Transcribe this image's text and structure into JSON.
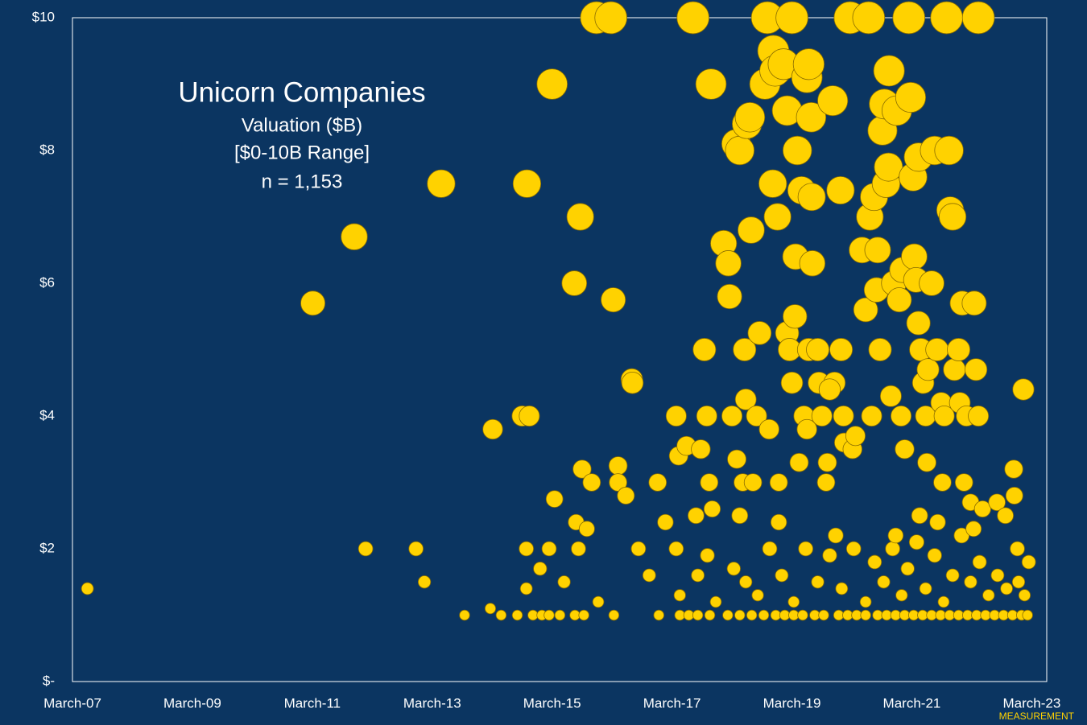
{
  "chart_data": {
    "type": "scatter",
    "title": "Unicorn Companies",
    "subtitle": "Valuation ($B)",
    "range_note": "[$0-10B Range]",
    "count_note": "n = 1,153",
    "footer": "MEASUREMENT",
    "color": "#ffd200",
    "xlim": [
      2007.17,
      2023.42
    ],
    "xticks": [
      {
        "value": 2007.17,
        "label": "March-07"
      },
      {
        "value": 2009.17,
        "label": "March-09"
      },
      {
        "value": 2011.17,
        "label": "March-11"
      },
      {
        "value": 2013.17,
        "label": "March-13"
      },
      {
        "value": 2015.17,
        "label": "March-15"
      },
      {
        "value": 2017.17,
        "label": "March-17"
      },
      {
        "value": 2019.17,
        "label": "March-19"
      },
      {
        "value": 2021.17,
        "label": "March-21"
      },
      {
        "value": 2023.17,
        "label": "March-23"
      }
    ],
    "ylim": [
      0,
      10
    ],
    "yticks": [
      {
        "value": 0,
        "label": "$-"
      },
      {
        "value": 2,
        "label": "$2"
      },
      {
        "value": 4,
        "label": "$4"
      },
      {
        "value": 6,
        "label": "$6"
      },
      {
        "value": 8,
        "label": "$8"
      },
      {
        "value": 10,
        "label": "$10"
      }
    ],
    "x": [
      2007.42,
      2011.18,
      2011.87,
      2012.06,
      2012.9,
      2013.04,
      2013.32,
      2013.71,
      2014.14,
      2014.18,
      2014.32,
      2014.59,
      2014.67,
      2014.74,
      2014.74,
      2014.75,
      2014.79,
      2014.97,
      2015.12,
      2015.17,
      2015.21,
      2015.37,
      2015.54,
      2015.57,
      2015.61,
      2015.64,
      2015.67,
      2015.75,
      2015.83,
      2015.94,
      2015.91,
      2016.15,
      2016.19,
      2016.27,
      2016.27,
      2016.4,
      2016.5,
      2016.51,
      2016.61,
      2016.79,
      2016.93,
      2017.06,
      2017.24,
      2017.24,
      2017.28,
      2017.41,
      2017.52,
      2017.57,
      2017.65,
      2017.71,
      2017.75,
      2017.79,
      2017.82,
      2017.84,
      2017.76,
      2018.03,
      2018.11,
      2018.13,
      2018.17,
      2018.24,
      2018.3,
      2018.25,
      2018.3,
      2018.35,
      2018.38,
      2018.4,
      2018.42,
      2018.47,
      2018.49,
      2018.52,
      2018.58,
      2018.63,
      2018.72,
      2018.76,
      2018.79,
      2018.85,
      2018.86,
      2018.89,
      2018.93,
      2018.95,
      2019.03,
      2019.09,
      2019.09,
      2019.13,
      2019.17,
      2019.17,
      2019.22,
      2019.23,
      2019.26,
      2019.29,
      2019.33,
      2019.37,
      2019.42,
      2019.42,
      2019.45,
      2019.45,
      2019.49,
      2019.5,
      2019.51,
      2019.6,
      2019.62,
      2019.67,
      2019.74,
      2019.76,
      2019.88,
      2019.8,
      2019.85,
      2019.98,
      2019.99,
      2020.03,
      2020.04,
      2020.14,
      2020.18,
      2020.23,
      2020.34,
      2020.4,
      2020.45,
      2020.47,
      2020.5,
      2020.54,
      2020.58,
      2020.6,
      2020.64,
      2020.68,
      2020.71,
      2020.74,
      2020.78,
      2020.79,
      2020.82,
      2020.87,
      2020.92,
      2020.96,
      2020.99,
      2021.01,
      2021.05,
      2021.12,
      2021.15,
      2021.19,
      2021.21,
      2021.24,
      2021.28,
      2021.32,
      2021.28,
      2021.36,
      2021.4,
      2021.42,
      2021.44,
      2021.5,
      2021.55,
      2021.59,
      2021.66,
      2021.68,
      2021.71,
      2021.75,
      2021.79,
      2021.81,
      2021.85,
      2021.88,
      2021.95,
      2021.97,
      2022.01,
      2022.04,
      2022.08,
      2022.15,
      2022.21,
      2022.24,
      2022.28,
      2022.28,
      2022.35,
      2022.59,
      2022.73,
      2022.87,
      2022.88,
      2022.93,
      2023.03,
      2023.12,
      2014.85,
      2015.0,
      2015.12,
      2015.3,
      2015.55,
      2015.7,
      2016.2,
      2016.95,
      2017.3,
      2017.45,
      2017.6,
      2017.8,
      2018.1,
      2018.3,
      2018.5,
      2018.7,
      2018.9,
      2019.05,
      2019.2,
      2019.35,
      2019.55,
      2019.7,
      2019.95,
      2020.1,
      2020.25,
      2020.4,
      2020.6,
      2020.75,
      2020.9,
      2021.05,
      2021.2,
      2021.35,
      2021.5,
      2021.65,
      2021.8,
      2021.95,
      2022.1,
      2022.25,
      2022.4,
      2022.55,
      2022.7,
      2022.85,
      2023.0,
      2023.1,
      2017.3,
      2017.6,
      2017.9,
      2018.2,
      2018.4,
      2018.6,
      2018.8,
      2019.0,
      2019.2,
      2019.4,
      2019.6,
      2019.8,
      2020.0,
      2020.2,
      2020.4,
      2020.55,
      2020.7,
      2020.85,
      2021.0,
      2021.1,
      2021.25,
      2021.4,
      2021.55,
      2021.7,
      2021.85,
      2022.0,
      2022.15,
      2022.3,
      2022.45,
      2022.6,
      2022.75,
      2022.95,
      2023.05,
      2021.3,
      2021.6,
      2022.2,
      2020.9,
      2019.9,
      2018.95
    ],
    "values": [
      1.4,
      5.7,
      6.7,
      2.0,
      2.0,
      1.5,
      7.5,
      1.0,
      1.1,
      3.8,
      1.0,
      1.0,
      4.0,
      2.0,
      1.4,
      7.5,
      4.0,
      1.7,
      2.0,
      9.0,
      2.75,
      1.5,
      6.0,
      2.4,
      2.0,
      7.0,
      3.2,
      2.3,
      3.0,
      1.2,
      10,
      10,
      5.75,
      3.25,
      3.0,
      2.8,
      4.55,
      4.5,
      2.0,
      1.6,
      3.0,
      2.4,
      4.0,
      2.0,
      3.4,
      3.55,
      10,
      2.5,
      3.5,
      5.0,
      4.0,
      3.0,
      9.0,
      2.6,
      1.9,
      6.6,
      6.3,
      5.8,
      4.0,
      8.1,
      8.0,
      3.35,
      2.5,
      3.0,
      5.0,
      4.25,
      8.4,
      8.5,
      6.8,
      3.0,
      4.0,
      5.25,
      9.0,
      10,
      3.8,
      7.5,
      9.5,
      9.2,
      7.0,
      3.0,
      9.3,
      8.6,
      5.25,
      5.0,
      10,
      4.5,
      5.5,
      6.4,
      8.0,
      3.3,
      7.4,
      4.0,
      9.1,
      3.8,
      9.3,
      5.0,
      8.5,
      7.3,
      6.3,
      5.0,
      4.5,
      4.0,
      3.0,
      3.3,
      4.5,
      4.4,
      8.75,
      7.4,
      5.0,
      4.0,
      3.6,
      10,
      3.5,
      3.7,
      6.5,
      5.6,
      10,
      7.0,
      4.0,
      7.3,
      5.9,
      6.5,
      5.0,
      8.3,
      8.7,
      7.5,
      7.75,
      9.2,
      4.3,
      6.0,
      8.6,
      5.75,
      4.0,
      6.2,
      3.5,
      10,
      8.8,
      7.6,
      6.4,
      6.05,
      5.4,
      5.0,
      7.9,
      4.5,
      4.0,
      3.3,
      4.7,
      6.0,
      8.0,
      5.0,
      4.2,
      3.0,
      4.0,
      10,
      8.0,
      7.1,
      7.0,
      4.7,
      5.0,
      4.2,
      5.7,
      3.0,
      4.0,
      2.7,
      5.7,
      4.7,
      10,
      4.0,
      2.6,
      2.7,
      2.5,
      3.2,
      2.8,
      2.0,
      4.4,
      1.8,
      1.0,
      1.0,
      1.0,
      1.0,
      1.0,
      1.0,
      1.0,
      1.0,
      1.0,
      1.0,
      1.0,
      1.0,
      1.0,
      1.0,
      1.0,
      1.0,
      1.0,
      1.0,
      1.0,
      1.0,
      1.0,
      1.0,
      1.0,
      1.0,
      1.0,
      1.0,
      1.0,
      1.0,
      1.0,
      1.0,
      1.0,
      1.0,
      1.0,
      1.0,
      1.0,
      1.0,
      1.0,
      1.0,
      1.0,
      1.0,
      1.0,
      1.0,
      1.0,
      1.0,
      1.3,
      1.6,
      1.2,
      1.7,
      1.5,
      1.3,
      2.0,
      1.6,
      1.2,
      2.0,
      1.5,
      1.9,
      1.4,
      2.0,
      1.2,
      1.8,
      1.5,
      2.0,
      1.3,
      1.7,
      2.1,
      1.4,
      1.9,
      1.2,
      1.6,
      2.2,
      1.5,
      1.8,
      1.3,
      1.6,
      1.4,
      1.5,
      1.3,
      2.5,
      2.4,
      2.3,
      2.2,
      2.2,
      2.4
    ]
  }
}
